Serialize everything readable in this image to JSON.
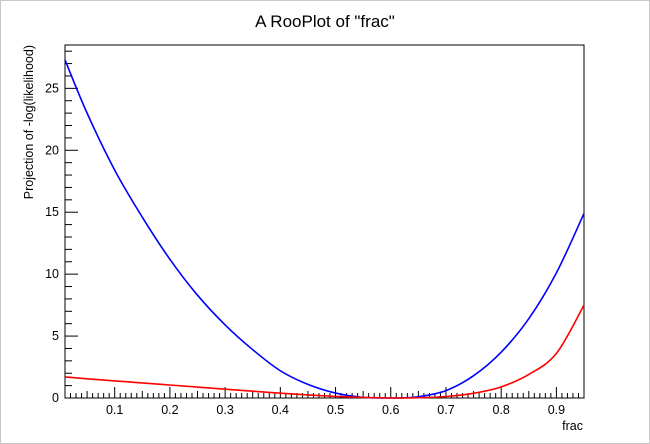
{
  "chart_data": {
    "type": "line",
    "title": "A RooPlot of \"frac\"",
    "xlabel": "frac",
    "ylabel": "Projection of -log(likelihood)",
    "xlim": [
      0.01,
      0.95
    ],
    "ylim": [
      0,
      28.5
    ],
    "x_ticks": [
      0.1,
      0.2,
      0.3,
      0.4,
      0.5,
      0.6,
      0.7,
      0.8,
      0.9
    ],
    "x_tick_labels": [
      "0.1",
      "0.2",
      "0.3",
      "0.4",
      "0.5",
      "0.6",
      "0.7",
      "0.8",
      "0.9"
    ],
    "y_ticks": [
      0,
      5,
      10,
      15,
      20,
      25
    ],
    "y_tick_labels": [
      "0",
      "5",
      "10",
      "15",
      "20",
      "25"
    ],
    "grid": false,
    "series": [
      {
        "color": "#0000ff",
        "x": [
          0.01,
          0.05,
          0.1,
          0.15,
          0.2,
          0.25,
          0.3,
          0.35,
          0.4,
          0.45,
          0.5,
          0.55,
          0.6,
          0.625,
          0.65,
          0.7,
          0.75,
          0.8,
          0.85,
          0.9,
          0.95
        ],
        "y": [
          27.3,
          23.0,
          18.4,
          14.6,
          11.2,
          8.3,
          5.9,
          3.9,
          2.2,
          1.1,
          0.4,
          0.05,
          0.0,
          0.02,
          0.1,
          0.6,
          1.8,
          3.7,
          6.4,
          10.1,
          14.9
        ]
      },
      {
        "color": "#ff0000",
        "x": [
          0.01,
          0.05,
          0.1,
          0.15,
          0.2,
          0.25,
          0.3,
          0.35,
          0.4,
          0.45,
          0.5,
          0.55,
          0.6,
          0.625,
          0.65,
          0.7,
          0.75,
          0.8,
          0.85,
          0.9,
          0.95
        ],
        "y": [
          1.7,
          1.55,
          1.38,
          1.22,
          1.05,
          0.88,
          0.71,
          0.55,
          0.39,
          0.25,
          0.13,
          0.05,
          0.0,
          0.0,
          0.02,
          0.12,
          0.38,
          0.9,
          1.9,
          3.6,
          7.5
        ]
      }
    ]
  }
}
